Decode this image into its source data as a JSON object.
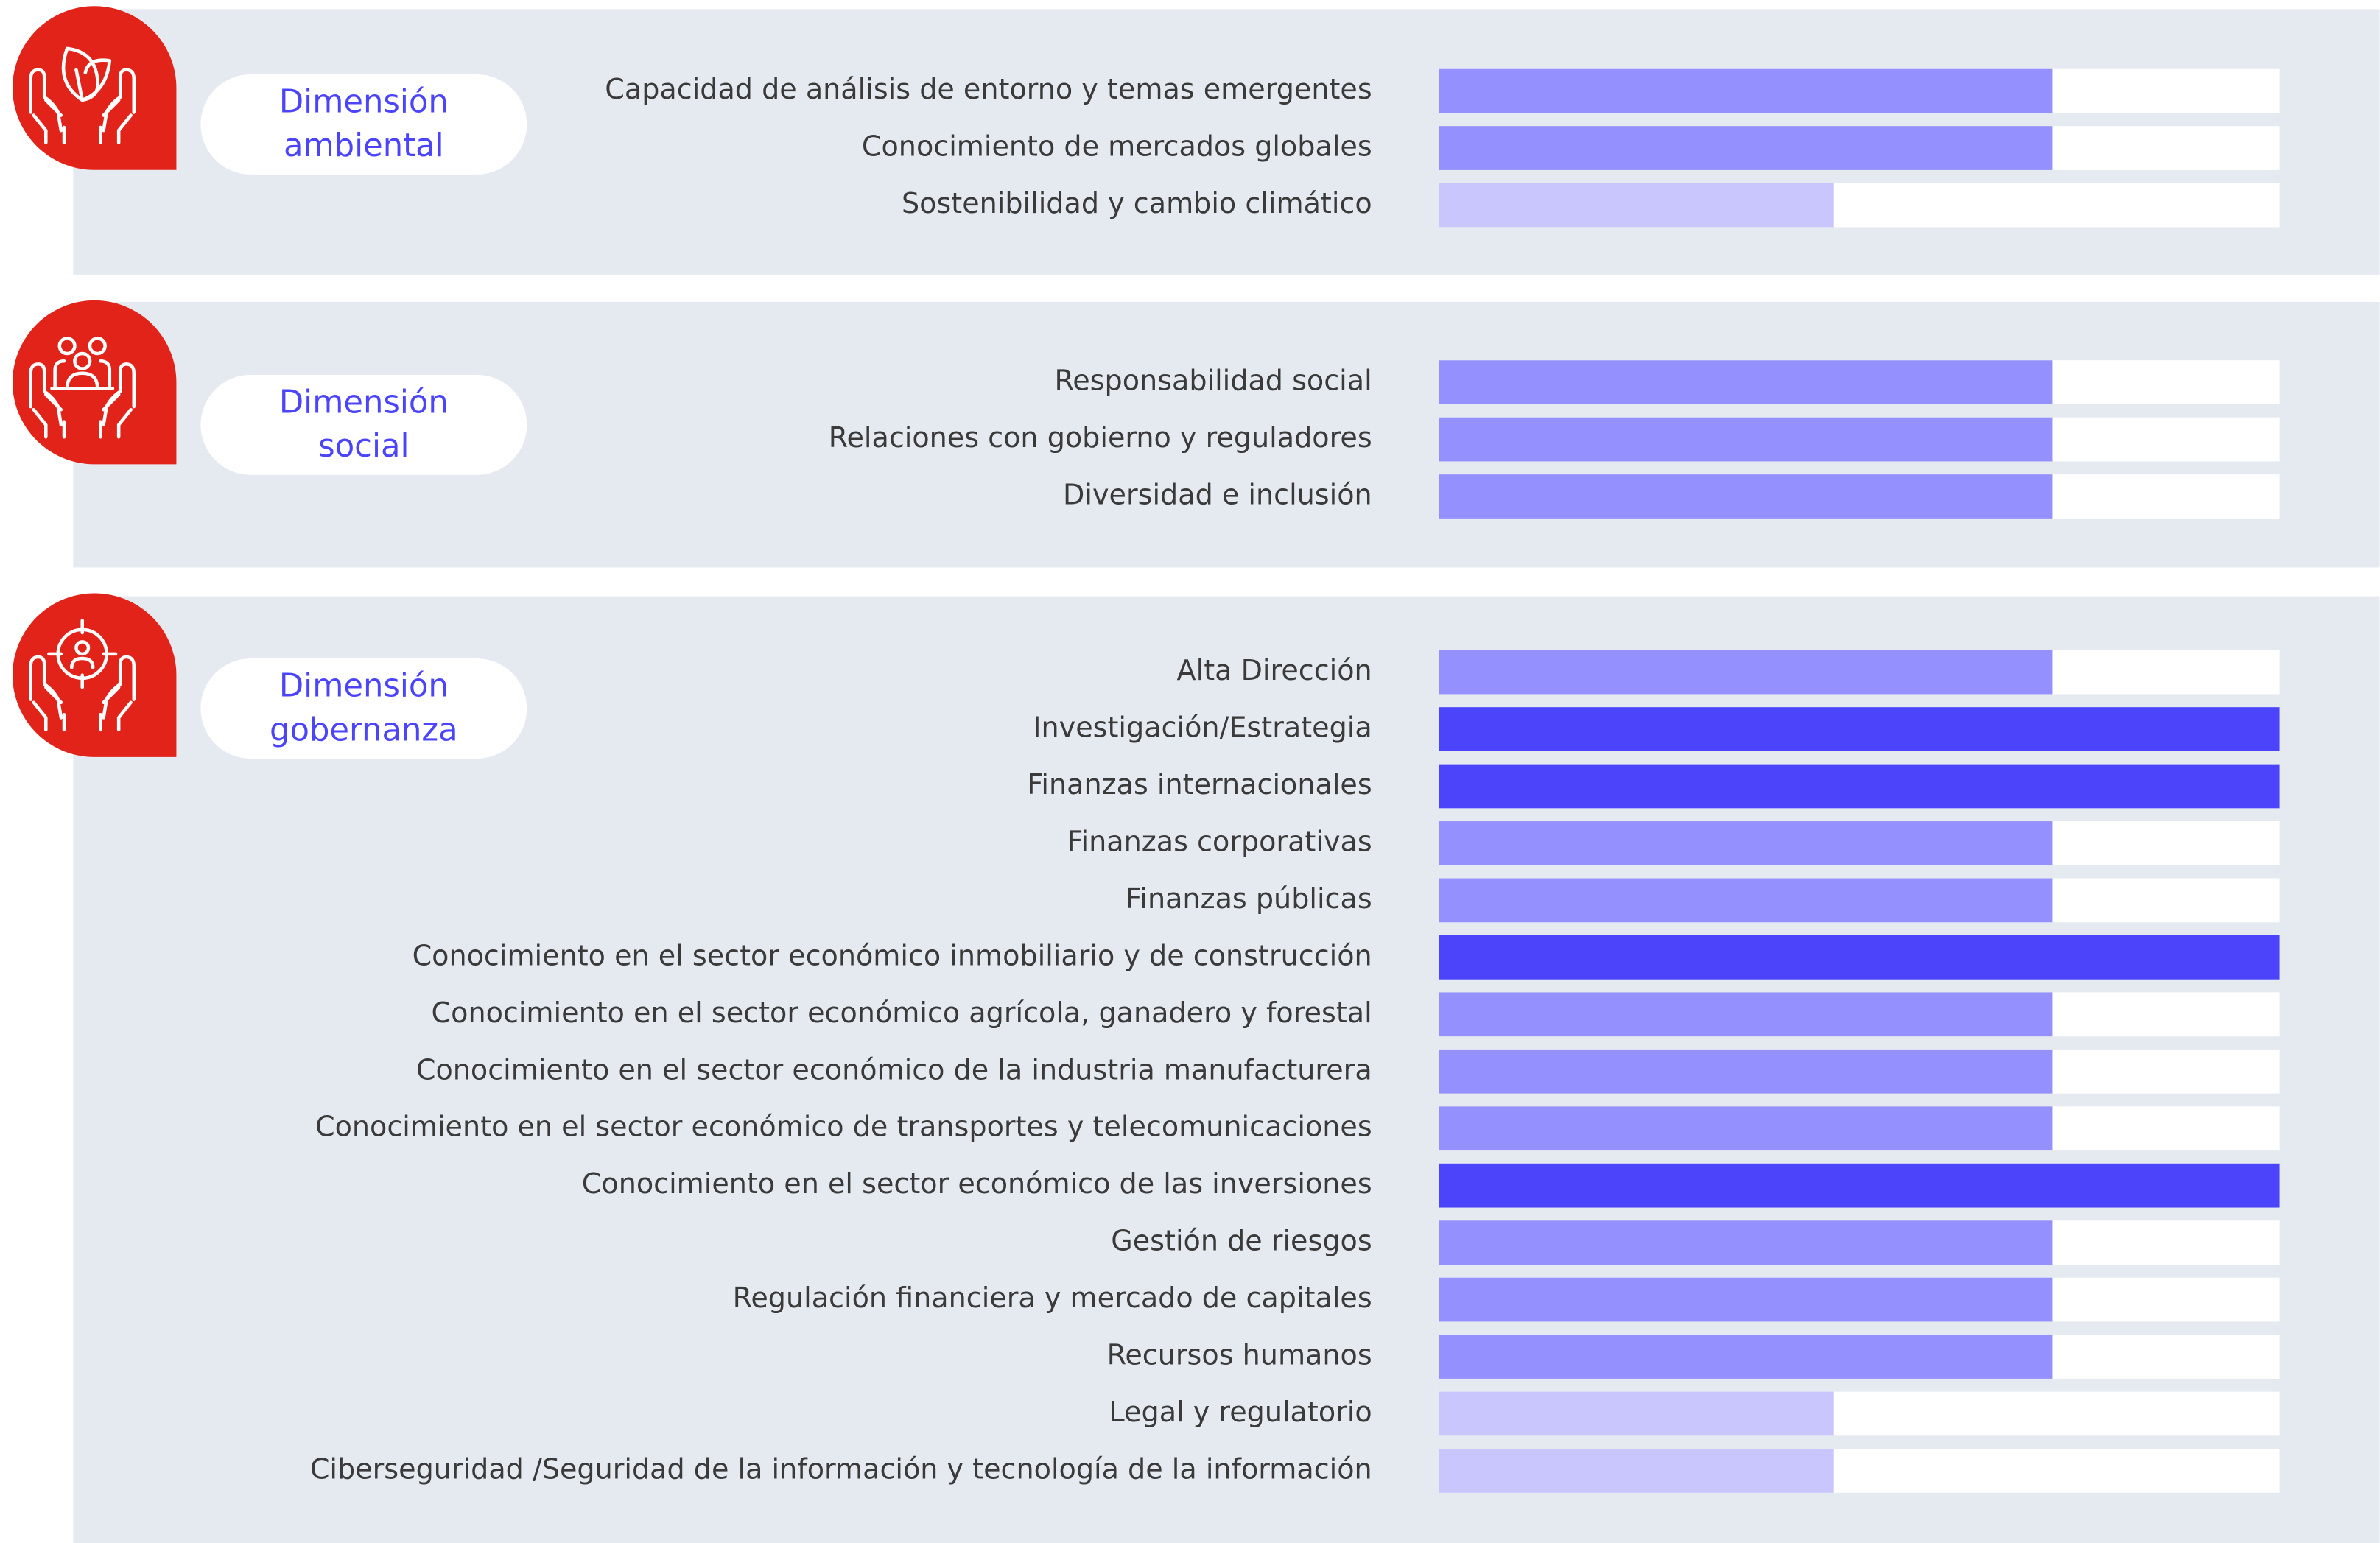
{
  "chart_data": [
    {
      "type": "bar",
      "title": "Dimensión ambiental",
      "xlim": [
        0,
        100
      ],
      "categories": [
        "Capacidad de análisis de entorno y temas emergentes",
        "Conocimiento de mercados globales",
        "Sostenibilidad y cambio climático"
      ],
      "values": [
        73,
        73,
        47
      ],
      "colors": [
        "#9490fd",
        "#9490fd",
        "#c8c6fd"
      ]
    },
    {
      "type": "bar",
      "title": "Dimensión social",
      "xlim": [
        0,
        100
      ],
      "categories": [
        "Responsabilidad social",
        "Relaciones con gobierno y reguladores",
        "Diversidad e inclusión"
      ],
      "values": [
        73,
        73,
        73
      ],
      "colors": [
        "#9490fd",
        "#9490fd",
        "#9490fd"
      ]
    },
    {
      "type": "bar",
      "title": "Dimensión gobernanza",
      "xlim": [
        0,
        100
      ],
      "categories": [
        "Alta Dirección",
        "Investigación/Estrategia",
        "Finanzas internacionales",
        "Finanzas corporativas",
        "Finanzas públicas",
        "Conocimiento en el sector económico inmobiliario y de construcción",
        "Conocimiento en el sector económico agrícola, ganadero y forestal",
        "Conocimiento en el sector económico de la industria manufacturera",
        "Conocimiento en el sector económico de transportes y telecomunicaciones",
        "Conocimiento en el sector económico de las inversiones",
        "Gestión de riesgos",
        "Regulación financiera y mercado de capitales",
        "Recursos humanos",
        "Legal y regulatorio",
        "Ciberseguridad /Seguridad de la información y tecnología de la información"
      ],
      "values": [
        73,
        100,
        100,
        73,
        73,
        100,
        73,
        73,
        73,
        100,
        73,
        73,
        73,
        47,
        47
      ],
      "colors": [
        "#9490fd",
        "#4b44fb",
        "#4b44fb",
        "#9490fd",
        "#9490fd",
        "#4b44fb",
        "#9490fd",
        "#9490fd",
        "#9490fd",
        "#4b44fb",
        "#9490fd",
        "#9490fd",
        "#9490fd",
        "#c8c6fd",
        "#c8c6fd"
      ]
    }
  ]
}
